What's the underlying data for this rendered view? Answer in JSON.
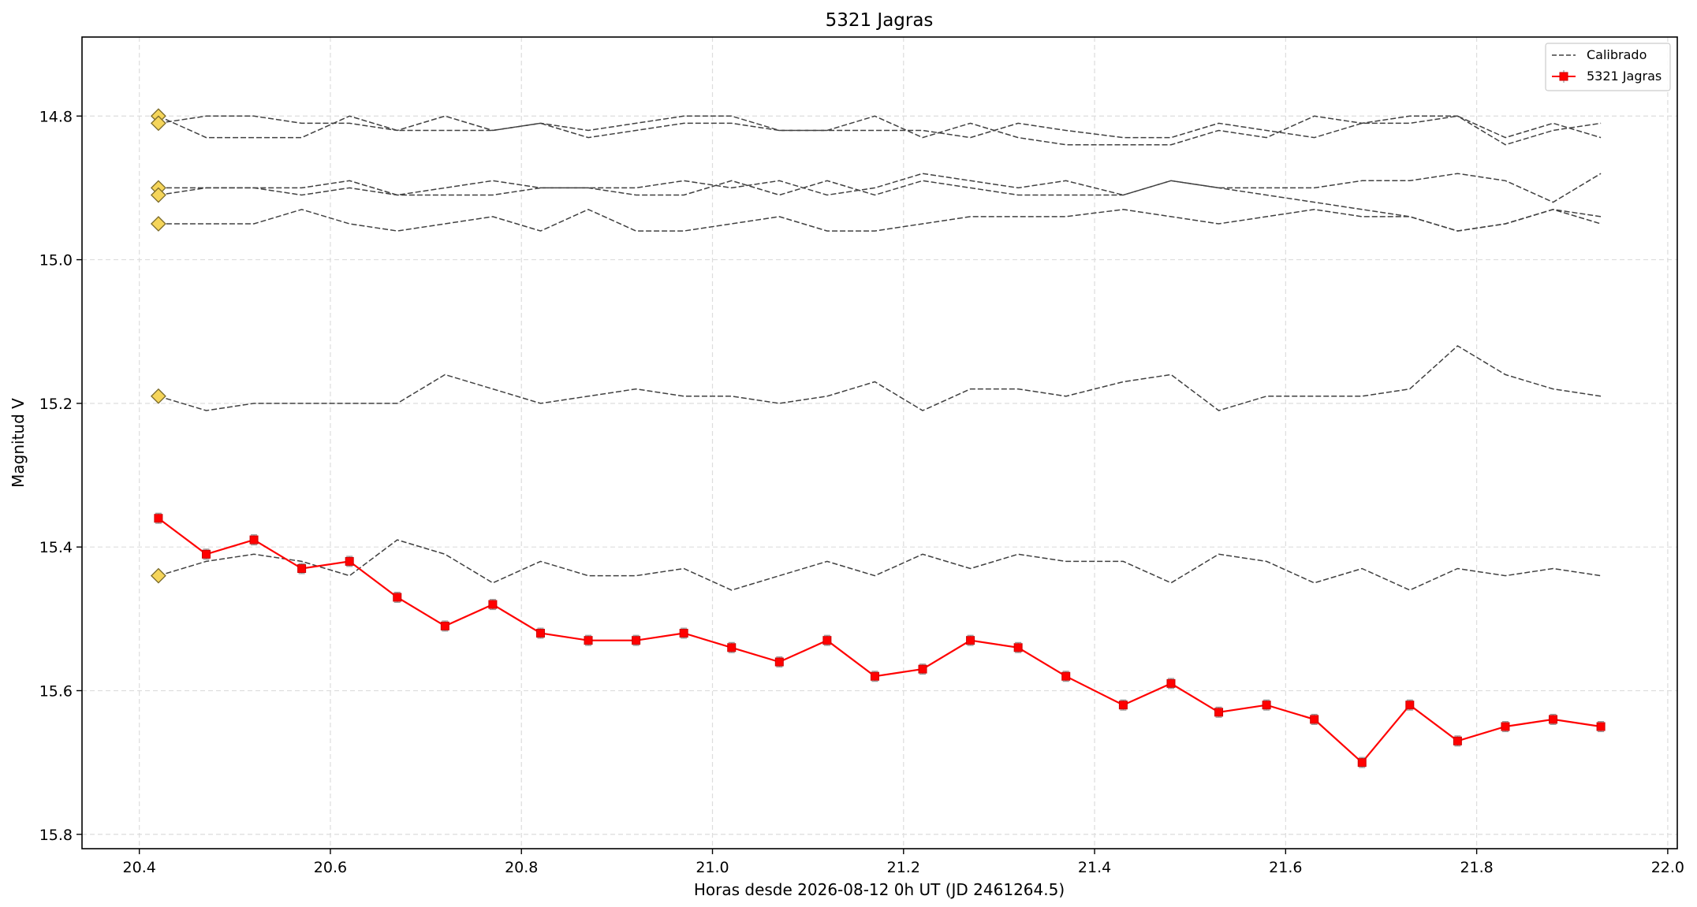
{
  "chart_data": {
    "type": "line",
    "title": "5321 Jagras",
    "xlabel": "Horas desde 2026-08-12 0h UT (JD 2461264.5)",
    "ylabel": "Magnitud V",
    "xlim": [
      20.34,
      22.01
    ],
    "ylim": [
      15.82,
      14.69
    ],
    "y_inverted": true,
    "grid": true,
    "legend_position": "top-right",
    "x_ticks": [
      20.4,
      20.6,
      20.8,
      21.0,
      21.2,
      21.4,
      21.6,
      21.8,
      22.0
    ],
    "x_tick_labels": [
      "20.4",
      "20.6",
      "20.8",
      "21.0",
      "21.2",
      "21.4",
      "21.6",
      "21.8",
      "22.0"
    ],
    "y_ticks": [
      14.8,
      15.0,
      15.2,
      15.4,
      15.6,
      15.8
    ],
    "y_tick_labels": [
      "14.8",
      "15.0",
      "15.2",
      "15.4",
      "15.6",
      "15.8"
    ],
    "x": [
      20.42,
      20.47,
      20.52,
      20.57,
      20.62,
      20.67,
      20.72,
      20.77,
      20.82,
      20.87,
      20.92,
      20.97,
      21.02,
      21.07,
      21.12,
      21.17,
      21.22,
      21.27,
      21.32,
      21.37,
      21.43,
      21.48,
      21.53,
      21.58,
      21.63,
      21.68,
      21.73,
      21.78,
      21.83,
      21.88,
      21.93
    ],
    "series": [
      {
        "name": "Calibrado",
        "style": "dashed",
        "color": "#404040",
        "values": [
          14.81,
          14.8,
          14.8,
          14.81,
          14.81,
          14.82,
          14.8,
          14.82,
          14.81,
          14.82,
          14.81,
          14.8,
          14.8,
          14.82,
          14.82,
          14.8,
          14.83,
          14.81,
          14.83,
          14.84,
          14.84,
          14.84,
          14.82,
          14.83,
          14.8,
          14.81,
          14.8,
          14.8,
          14.84,
          14.82,
          14.81
        ]
      },
      {
        "name": "Calibrado",
        "style": "dashed",
        "color": "#404040",
        "values": [
          14.8,
          14.83,
          14.83,
          14.83,
          14.8,
          14.82,
          14.82,
          14.82,
          14.81,
          14.83,
          14.82,
          14.81,
          14.81,
          14.82,
          14.82,
          14.82,
          14.82,
          14.83,
          14.81,
          14.82,
          14.83,
          14.83,
          14.81,
          14.82,
          14.83,
          14.81,
          14.81,
          14.8,
          14.83,
          14.81,
          14.83
        ]
      },
      {
        "name": "Calibrado",
        "style": "dashed",
        "color": "#404040",
        "values": [
          14.9,
          14.9,
          14.9,
          14.91,
          14.9,
          14.91,
          14.91,
          14.91,
          14.9,
          14.9,
          14.9,
          14.89,
          14.9,
          14.89,
          14.91,
          14.9,
          14.88,
          14.89,
          14.9,
          14.89,
          14.91,
          14.89,
          14.9,
          14.91,
          14.92,
          14.93,
          14.94,
          14.96,
          14.95,
          14.93,
          14.95
        ]
      },
      {
        "name": "Calibrado",
        "style": "dashed",
        "color": "#404040",
        "values": [
          14.91,
          14.9,
          14.9,
          14.9,
          14.89,
          14.91,
          14.9,
          14.89,
          14.9,
          14.9,
          14.91,
          14.91,
          14.89,
          14.91,
          14.89,
          14.91,
          14.89,
          14.9,
          14.91,
          14.91,
          14.91,
          14.89,
          14.9,
          14.9,
          14.9,
          14.89,
          14.89,
          14.88,
          14.89,
          14.92,
          14.88
        ]
      },
      {
        "name": "Calibrado",
        "style": "dashed",
        "color": "#404040",
        "values": [
          14.95,
          14.95,
          14.95,
          14.93,
          14.95,
          14.96,
          14.95,
          14.94,
          14.96,
          14.93,
          14.96,
          14.96,
          14.95,
          14.94,
          14.96,
          14.96,
          14.95,
          14.94,
          14.94,
          14.94,
          14.93,
          14.94,
          14.95,
          14.94,
          14.93,
          14.94,
          14.94,
          14.96,
          14.95,
          14.93,
          14.94
        ]
      },
      {
        "name": "Calibrado",
        "style": "dashed",
        "color": "#404040",
        "values": [
          15.19,
          15.21,
          15.2,
          15.2,
          15.2,
          15.2,
          15.16,
          15.18,
          15.2,
          15.19,
          15.18,
          15.19,
          15.19,
          15.2,
          15.19,
          15.17,
          15.21,
          15.18,
          15.18,
          15.19,
          15.17,
          15.16,
          15.21,
          15.19,
          15.19,
          15.19,
          15.18,
          15.12,
          15.16,
          15.18,
          15.19
        ]
      },
      {
        "name": "Calibrado",
        "style": "dashed",
        "color": "#404040",
        "values": [
          15.44,
          15.42,
          15.41,
          15.42,
          15.44,
          15.39,
          15.41,
          15.45,
          15.42,
          15.44,
          15.44,
          15.43,
          15.46,
          15.44,
          15.42,
          15.44,
          15.41,
          15.43,
          15.41,
          15.42,
          15.42,
          15.45,
          15.41,
          15.42,
          15.45,
          15.43,
          15.46,
          15.43,
          15.44,
          15.43,
          15.44
        ]
      },
      {
        "name": "5321 Jagras",
        "style": "solid",
        "color": "#ff0000",
        "marker": "square",
        "error": 0.007,
        "values": [
          15.36,
          15.41,
          15.39,
          15.43,
          15.42,
          15.47,
          15.51,
          15.48,
          15.52,
          15.53,
          15.53,
          15.52,
          15.54,
          15.56,
          15.53,
          15.58,
          15.57,
          15.53,
          15.54,
          15.58,
          15.62,
          15.59,
          15.63,
          15.62,
          15.64,
          15.7,
          15.62,
          15.67,
          15.65,
          15.64,
          15.65
        ]
      }
    ],
    "reference_markers": {
      "color": "#f5d55a",
      "x": 20.42,
      "values": [
        14.8,
        14.81,
        14.9,
        14.91,
        14.95,
        15.19,
        15.44
      ]
    },
    "legend": [
      {
        "label": "Calibrado",
        "style": "dashed",
        "color": "#404040"
      },
      {
        "label": "5321 Jagras",
        "style": "solid",
        "color": "#ff0000",
        "marker": "square"
      }
    ]
  }
}
